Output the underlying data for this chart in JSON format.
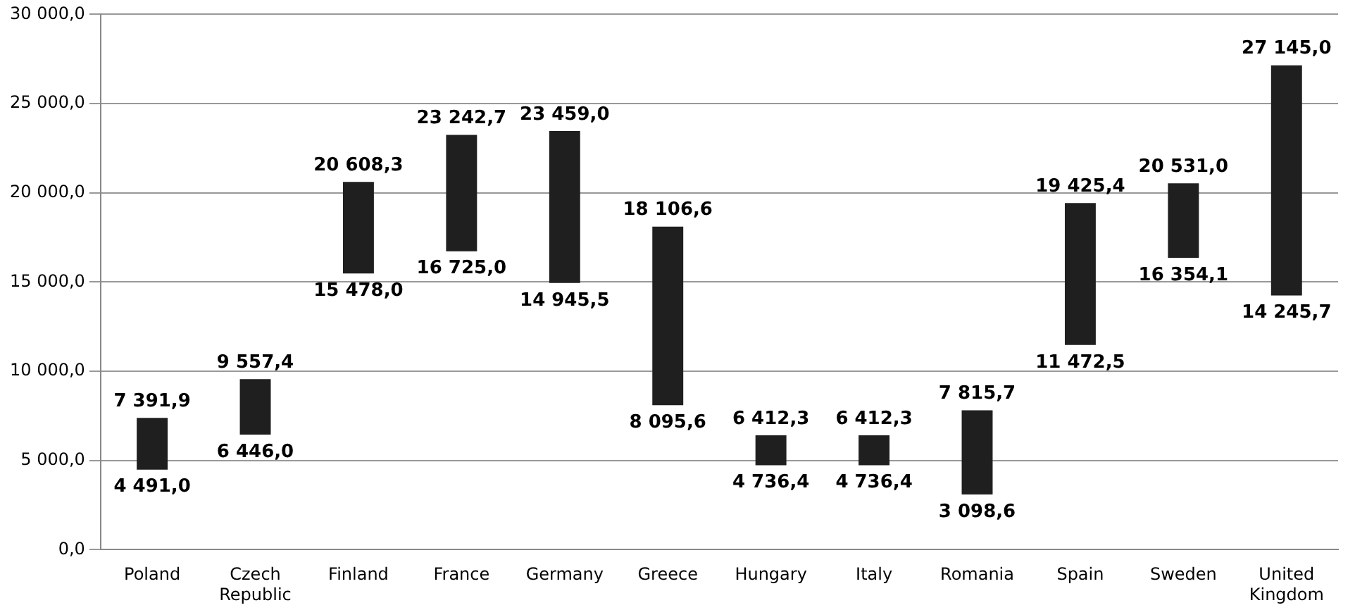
{
  "chart_data": {
    "type": "bar",
    "categories": [
      "Poland",
      "Czech Republic",
      "Finland",
      "France",
      "Germany",
      "Greece",
      "Hungary",
      "Italy",
      "Romania",
      "Spain",
      "Sweden",
      "United Kingdom"
    ],
    "base": [
      4491.0,
      6446.0,
      15478.0,
      16725.0,
      14945.5,
      8095.6,
      4736.4,
      4736.4,
      3098.6,
      11472.5,
      16354.1,
      14245.7
    ],
    "values": [
      2900.9,
      3111.4,
      5130.3,
      6517.7,
      8513.5,
      10011.0,
      1675.9,
      1675.9,
      4717.1,
      7952.9,
      4176.9,
      12899.3
    ],
    "color": "#1f1f1f",
    "ylim": [
      0,
      30000
    ],
    "yticks": [
      {
        "value": 0,
        "label": "0,0"
      },
      {
        "value": 5000,
        "label": "5 000,0"
      },
      {
        "value": 10000,
        "label": "10 000,0"
      },
      {
        "value": 15000,
        "label": "15 000,0"
      },
      {
        "value": 20000,
        "label": "20 000,0"
      },
      {
        "value": 25000,
        "label": "25 000,0"
      },
      {
        "value": 30000,
        "label": "30 000,0"
      }
    ],
    "grid": "y",
    "legend": false,
    "annotations": [
      {
        "text": "7 391,9",
        "x": "Poland",
        "y": 7391.9
      },
      {
        "text": "4 491,0",
        "x": "Poland",
        "y": 4491.0
      },
      {
        "text": "9 557,4",
        "x": "Czech Republic",
        "y": 9557.4
      },
      {
        "text": "6 446,0",
        "x": "Czech Republic",
        "y": 6446.0
      },
      {
        "text": "20 608,3",
        "x": "Finland",
        "y": 20608.3
      },
      {
        "text": "15 478,0",
        "x": "Finland",
        "y": 15478.0
      },
      {
        "text": "23 242,7",
        "x": "France",
        "y": 23242.7
      },
      {
        "text": "16 725,0",
        "x": "France",
        "y": 16725.0
      },
      {
        "text": "23 459,0",
        "x": "Germany",
        "y": 23459.0
      },
      {
        "text": "14 945,5",
        "x": "Germany",
        "y": 14945.5
      },
      {
        "text": "18 106,6",
        "x": "Greece",
        "y": 18106.6
      },
      {
        "text": "8 095,6",
        "x": "Greece",
        "y": 8095.6
      },
      {
        "text": "6 412,3",
        "x": "Hungary",
        "y": 6412.3
      },
      {
        "text": "4 736,4",
        "x": "Hungary",
        "y": 4736.4
      },
      {
        "text": "6 412,3",
        "x": "Italy",
        "y": 6412.3
      },
      {
        "text": "4 736,4",
        "x": "Italy",
        "y": 4736.4
      },
      {
        "text": "7 815,7",
        "x": "Romania",
        "y": 7815.7
      },
      {
        "text": "3 098,6",
        "x": "Romania",
        "y": 3098.6
      },
      {
        "text": "19 425,4",
        "x": "Spain",
        "y": 19425.4
      },
      {
        "text": "11 472,5",
        "x": "Spain",
        "y": 11472.5
      },
      {
        "text": "20 531,0",
        "x": "Sweden",
        "y": 20531.0
      },
      {
        "text": "16 354,1",
        "x": "Sweden",
        "y": 16354.1
      },
      {
        "text": "27 145,0",
        "x": "United Kingdom",
        "y": 27145.0
      },
      {
        "text": "14 245,7",
        "x": "United Kingdom",
        "y": 14245.7
      }
    ]
  }
}
